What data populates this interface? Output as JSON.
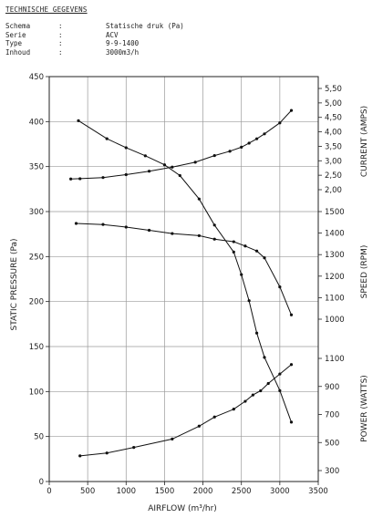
{
  "header": {
    "title": "TECHNISCHE GEGEVENS",
    "specs": [
      {
        "key": "Schema",
        "sep": ":",
        "value": "Statische druk (Pa)"
      },
      {
        "key": "Serie",
        "sep": ":",
        "value": "ACV"
      },
      {
        "key": "Type",
        "sep": ":",
        "value": "9-9-1400"
      },
      {
        "key": "Inhoud",
        "sep": ":",
        "value": "3000m3/h"
      }
    ]
  },
  "chart_data": {
    "type": "line",
    "xlabel": "AIRFLOW (m³/hr)",
    "xlim": [
      0,
      3500
    ],
    "x_ticks": [
      "0",
      "500",
      "1000",
      "1500",
      "2000",
      "2500",
      "3000",
      "3500"
    ],
    "left_axis": {
      "label": "STATIC PRESSURE (Pa)",
      "ylim": [
        0,
        450
      ],
      "ticks": [
        "0",
        "50",
        "100",
        "150",
        "200",
        "250",
        "300",
        "350",
        "400",
        "450"
      ]
    },
    "right_axes": [
      {
        "label": "CURRENT (AMPS)",
        "ticks": [
          "2,00",
          "2,50",
          "3,00",
          "3,50",
          "4,00",
          "4,50",
          "5,00",
          "5,50"
        ]
      },
      {
        "label": "SPEED (RPM)",
        "ticks": [
          "1000",
          "1100",
          "1200",
          "1300",
          "1400",
          "1500"
        ]
      },
      {
        "label": "POWER (WATTS)",
        "ticks": [
          "300",
          "500",
          "700",
          "900",
          "1100"
        ]
      }
    ],
    "grid": true,
    "series": [
      {
        "axis": "left",
        "x": [
          380,
          750,
          1000,
          1250,
          1500,
          1700,
          1950,
          2150,
          2400,
          2500,
          2600,
          2700,
          2800,
          3000,
          3150
        ],
        "y": [
          401,
          381,
          371,
          362,
          352,
          340,
          314,
          285,
          255,
          230,
          201,
          165,
          138,
          101,
          66
        ]
      },
      {
        "axis": "current",
        "x": [
          280,
          400,
          700,
          1000,
          1300,
          1600,
          1900,
          2150,
          2350,
          2500,
          2600,
          2700,
          2800,
          3000,
          3150
        ],
        "y": [
          2.37,
          2.38,
          2.42,
          2.52,
          2.64,
          2.78,
          2.95,
          3.18,
          3.33,
          3.47,
          3.61,
          3.76,
          3.93,
          4.31,
          4.74
        ]
      },
      {
        "axis": "speed",
        "x": [
          350,
          700,
          1000,
          1300,
          1600,
          1950,
          2150,
          2400,
          2550,
          2700,
          2800,
          3000,
          3150
        ],
        "y": [
          1445,
          1440,
          1428,
          1413,
          1398,
          1388,
          1372,
          1360,
          1340,
          1317,
          1285,
          1150,
          1020
        ]
      },
      {
        "axis": "power",
        "x": [
          400,
          750,
          1100,
          1600,
          1950,
          2150,
          2400,
          2550,
          2650,
          2750,
          2850,
          3000,
          3150
        ],
        "y": [
          405,
          425,
          465,
          525,
          617,
          682,
          738,
          794,
          839,
          869,
          921,
          989,
          1056
        ]
      }
    ]
  }
}
